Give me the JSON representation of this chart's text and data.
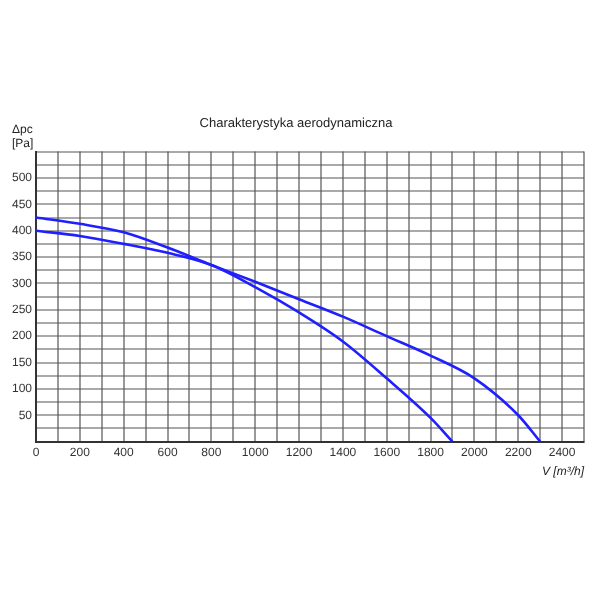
{
  "chart_data": {
    "type": "line",
    "title": "Charakterystyka aerodynamiczna",
    "xlabel": "V [m³/h]",
    "ylabel": "Δpc [Pa]",
    "series": [
      {
        "color": "#2020ff",
        "x": [
          0,
          200,
          400,
          600,
          800,
          1000,
          1200,
          1400,
          1600,
          1800,
          2000,
          2200,
          2300
        ],
        "values": [
          425,
          413,
          397,
          368,
          335,
          303,
          270,
          237,
          200,
          163,
          120,
          50,
          0
        ]
      },
      {
        "color": "#2020ff",
        "x": [
          0,
          200,
          400,
          600,
          800,
          1000,
          1200,
          1400,
          1600,
          1800,
          1900
        ],
        "values": [
          400,
          390,
          375,
          358,
          335,
          293,
          245,
          190,
          120,
          45,
          0
        ]
      }
    ],
    "xlim": [
      0,
      2500
    ],
    "xticks": [
      0,
      {
        "value": 100,
        "label": null
      },
      200,
      {
        "value": 300,
        "label": null
      },
      400,
      {
        "value": 500,
        "label": null
      },
      600,
      {
        "value": 700,
        "label": null
      },
      800,
      {
        "value": 900,
        "label": null
      },
      1000,
      {
        "value": 1100,
        "label": null
      },
      1200,
      {
        "value": 1300,
        "label": null
      },
      1400,
      {
        "value": 1500,
        "label": null
      },
      1600,
      {
        "value": 1700,
        "label": null
      },
      1800,
      {
        "value": 1900,
        "label": null
      },
      2000,
      {
        "value": 2100,
        "label": null
      },
      2200,
      {
        "value": 2300,
        "label": null
      },
      2400,
      {
        "value": 2500,
        "label": null
      }
    ],
    "ylim": [
      0,
      550
    ],
    "yticks": [
      {
        "value": 0,
        "label": null
      },
      {
        "value": 25,
        "label": null
      },
      50,
      {
        "value": 75,
        "label": null
      },
      100,
      {
        "value": 125,
        "label": null
      },
      150,
      {
        "value": 175,
        "label": null
      },
      200,
      {
        "value": 225,
        "label": null
      },
      250,
      {
        "value": 275,
        "label": null
      },
      300,
      {
        "value": 325,
        "label": null
      },
      350,
      {
        "value": 375,
        "label": null
      },
      400,
      {
        "value": 425,
        "label": null
      },
      450,
      {
        "value": 475,
        "label": null
      },
      500,
      {
        "value": 525,
        "label": null
      },
      {
        "value": 550,
        "label": null
      }
    ],
    "grid": true,
    "marker": "none",
    "line_style": "solid"
  }
}
